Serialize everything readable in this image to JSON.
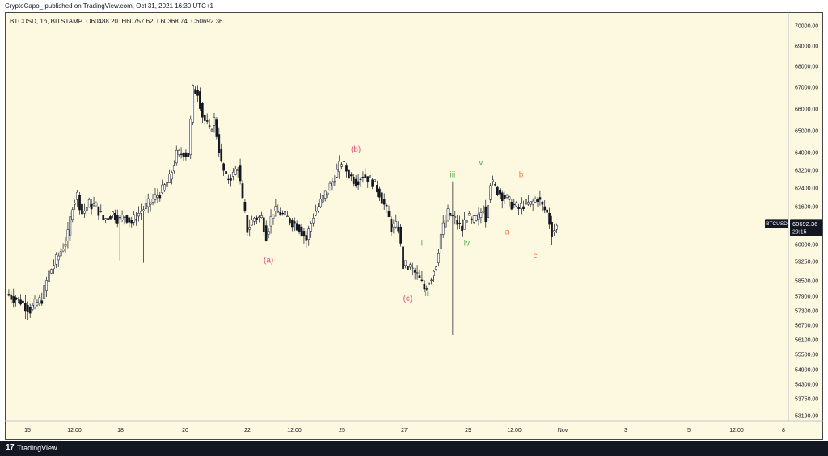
{
  "header": {
    "publish_line": "CryptoCapo_ published on TradingView.com, Oct 31, 2021 16:30 UTC+1",
    "symbol_line": "BTCUSD, 1h, BITSTAMP  O60488.20  H60757.62  L60368.74  C60692.36"
  },
  "footer": {
    "logo_glyph": "17",
    "brand": "TradingView"
  },
  "colors": {
    "background": "#fdf8e0",
    "candle": "#131722",
    "wave_red": "#e8537a",
    "wave_green": "#4caf50",
    "wave_orange": "#f57c3c",
    "price_tag_bg": "#131722"
  },
  "chart_data": {
    "type": "candlestick",
    "symbol": "BTCUSD",
    "timeframe": "1h",
    "exchange": "BITSTAMP",
    "ohlc_last": {
      "open": 60488.2,
      "high": 60757.62,
      "low": 60368.74,
      "close": 60692.36
    },
    "y_ticks": [
      "70000.00",
      "69000.00",
      "68000.00",
      "67000.00",
      "66000.00",
      "65000.00",
      "64000.00",
      "63200.00",
      "62400.00",
      "61600.00",
      "60800.00",
      "60000.00",
      "59250.00",
      "58500.00",
      "57900.00",
      "57300.00",
      "56700.00",
      "56100.00",
      "55500.00",
      "54900.00",
      "54300.00",
      "53750.00",
      "53190.00"
    ],
    "x_ticks": [
      "15",
      "12:00",
      "18",
      "20",
      "22",
      "12:00",
      "25",
      "27",
      "29",
      "12:00",
      "Nov",
      "3",
      "5",
      "12:00",
      "8"
    ],
    "price_tag": {
      "label": "BTCUSD",
      "value": "60692.36",
      "countdown": "29:15"
    },
    "price_path": [
      [
        0,
        57980
      ],
      [
        6,
        57700
      ],
      [
        10,
        57350
      ],
      [
        15,
        57800
      ],
      [
        18,
        58800
      ],
      [
        22,
        59500
      ],
      [
        26,
        60350
      ],
      [
        28,
        61700
      ],
      [
        30,
        62100
      ],
      [
        32,
        61300
      ],
      [
        35,
        61700
      ],
      [
        38,
        61600
      ],
      [
        41,
        61000
      ],
      [
        45,
        61300
      ],
      [
        48,
        61000
      ],
      [
        50,
        61200
      ],
      [
        53,
        60900
      ],
      [
        56,
        61300
      ],
      [
        59,
        61600
      ],
      [
        61,
        61800
      ],
      [
        63,
        62000
      ],
      [
        66,
        62300
      ],
      [
        69,
        62800
      ],
      [
        72,
        63900
      ],
      [
        75,
        64000
      ],
      [
        77,
        63900
      ],
      [
        79,
        66900
      ],
      [
        81,
        66800
      ],
      [
        83,
        65700
      ],
      [
        86,
        65000
      ],
      [
        88,
        65500
      ],
      [
        91,
        63500
      ],
      [
        93,
        62800
      ],
      [
        96,
        63000
      ],
      [
        98,
        63400
      ],
      [
        100,
        61800
      ],
      [
        102,
        60600
      ],
      [
        105,
        61100
      ],
      [
        108,
        61100
      ],
      [
        110,
        60400
      ],
      [
        113,
        61400
      ],
      [
        116,
        61300
      ],
      [
        120,
        61000
      ],
      [
        124,
        60700
      ],
      [
        127,
        60200
      ],
      [
        130,
        61200
      ],
      [
        133,
        61800
      ],
      [
        136,
        62300
      ],
      [
        139,
        62900
      ],
      [
        142,
        63600
      ],
      [
        145,
        63000
      ],
      [
        148,
        62700
      ],
      [
        151,
        63000
      ],
      [
        155,
        62700
      ],
      [
        158,
        62200
      ],
      [
        161,
        61400
      ],
      [
        163,
        60700
      ],
      [
        166,
        60700
      ],
      [
        168,
        59100
      ],
      [
        171,
        59000
      ],
      [
        174,
        58700
      ],
      [
        177,
        58200
      ],
      [
        180,
        58700
      ],
      [
        182,
        59200
      ],
      [
        184,
        60400
      ],
      [
        187,
        61300
      ],
      [
        190,
        61000
      ],
      [
        193,
        60600
      ],
      [
        195,
        61200
      ],
      [
        197,
        60900
      ],
      [
        200,
        61100
      ],
      [
        202,
        61600
      ],
      [
        203,
        61100
      ],
      [
        205,
        62700
      ],
      [
        208,
        62300
      ],
      [
        211,
        62000
      ],
      [
        214,
        61700
      ],
      [
        217,
        61500
      ],
      [
        219,
        61700
      ],
      [
        222,
        61700
      ],
      [
        225,
        62000
      ],
      [
        227,
        61600
      ],
      [
        229,
        61300
      ],
      [
        231,
        60500
      ],
      [
        233,
        60700
      ]
    ],
    "wicks": [
      {
        "i": 48,
        "low": 59300
      },
      {
        "i": 58,
        "low": 59200
      },
      {
        "i": 189,
        "low": 56300,
        "high": 62700
      }
    ],
    "wave_labels": [
      {
        "text": "(a)",
        "i": 111,
        "price": 59300,
        "color": "wave_red"
      },
      {
        "text": "(b)",
        "i": 148,
        "price": 64150,
        "color": "wave_red"
      },
      {
        "text": "(c)",
        "i": 170,
        "price": 57800,
        "color": "wave_red"
      },
      {
        "text": "i",
        "i": 176,
        "price": 60050,
        "color": "wave_green"
      },
      {
        "text": "ii",
        "i": 178,
        "price": 58000,
        "color": "wave_green"
      },
      {
        "text": "iii",
        "i": 189,
        "price": 63000,
        "color": "wave_green"
      },
      {
        "text": "iv",
        "i": 195,
        "price": 60050,
        "color": "wave_green"
      },
      {
        "text": "v",
        "i": 201,
        "price": 63550,
        "color": "wave_green"
      },
      {
        "text": "a",
        "i": 212,
        "price": 60500,
        "color": "wave_orange"
      },
      {
        "text": "b",
        "i": 218,
        "price": 63000,
        "color": "wave_orange"
      },
      {
        "text": "c",
        "i": 224,
        "price": 59500,
        "color": "wave_orange"
      }
    ]
  }
}
